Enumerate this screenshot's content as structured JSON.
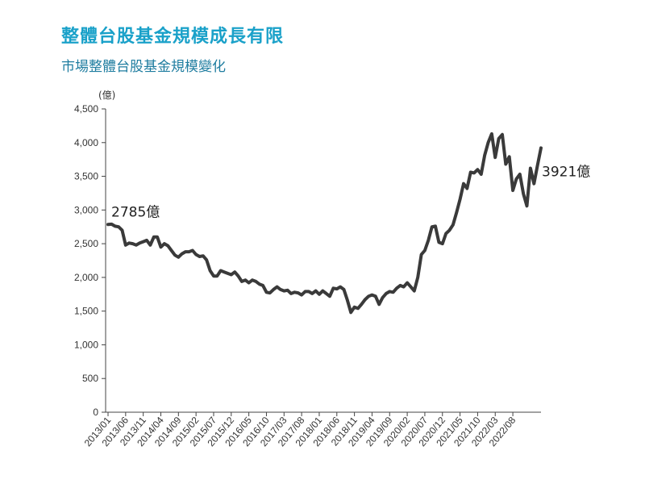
{
  "title": "整體台股基金規模成長有限",
  "subtitle": "市場整體台股基金規模變化",
  "chart_data": {
    "type": "line",
    "ylabel": "(億)",
    "ylim": [
      0,
      4500
    ],
    "yticks": [
      0,
      500,
      1000,
      1500,
      2000,
      2500,
      3000,
      3500,
      4000,
      4500
    ],
    "ytick_labels": [
      "0",
      "500",
      "1,000",
      "1,500",
      "2,000",
      "2,500",
      "3,000",
      "3,500",
      "4,000",
      "4,500"
    ],
    "xtick_labels": [
      "2013/01",
      "2013/06",
      "2013/11",
      "2014/04",
      "2014/09",
      "2015/02",
      "2015/07",
      "2015/12",
      "2016/05",
      "2016/10",
      "2017/03",
      "2017/08",
      "2018/01",
      "2018/06",
      "2018/11",
      "2019/04",
      "2019/09",
      "2020/02",
      "2020/07",
      "2020/12",
      "2021/05",
      "2021/10",
      "2022/03",
      "2022/08"
    ],
    "grid": false,
    "line_color": "#3a3a3a",
    "series": [
      {
        "values": [
          2785,
          2790,
          2760,
          2750,
          2700,
          2480,
          2510,
          2500,
          2480,
          2510,
          2530,
          2550,
          2480,
          2600,
          2600,
          2450,
          2500,
          2470,
          2400,
          2330,
          2300,
          2350,
          2380,
          2380,
          2400,
          2340,
          2310,
          2320,
          2260,
          2100,
          2020,
          2020,
          2100,
          2080,
          2060,
          2040,
          2080,
          2020,
          1940,
          1960,
          1920,
          1960,
          1940,
          1900,
          1880,
          1780,
          1770,
          1820,
          1860,
          1820,
          1800,
          1810,
          1760,
          1780,
          1770,
          1740,
          1790,
          1790,
          1760,
          1800,
          1750,
          1800,
          1760,
          1720,
          1840,
          1830,
          1860,
          1820,
          1660,
          1480,
          1560,
          1540,
          1600,
          1670,
          1720,
          1740,
          1720,
          1600,
          1700,
          1760,
          1790,
          1780,
          1840,
          1880,
          1860,
          1920,
          1860,
          1800,
          2000,
          2340,
          2400,
          2550,
          2750,
          2760,
          2520,
          2500,
          2650,
          2700,
          2780,
          2960,
          3160,
          3390,
          3320,
          3560,
          3550,
          3600,
          3530,
          3810,
          4000,
          4130,
          3780,
          4060,
          4120,
          3680,
          3790,
          3290,
          3460,
          3530,
          3240,
          3060,
          3620,
          3390,
          3660,
          3921
        ]
      }
    ],
    "annotations": [
      {
        "text": "2785億",
        "at": "first"
      },
      {
        "text": "3921億",
        "at": "last"
      }
    ]
  }
}
